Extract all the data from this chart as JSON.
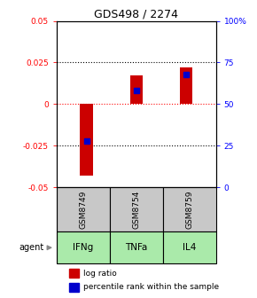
{
  "title": "GDS498 / 2274",
  "samples": [
    "GSM8749",
    "GSM8754",
    "GSM8759"
  ],
  "agents": [
    "IFNg",
    "TNFa",
    "IL4"
  ],
  "log_ratios": [
    -0.043,
    0.017,
    0.022
  ],
  "percentile_ranks": [
    0.28,
    0.58,
    0.68
  ],
  "bar_color": "#cc0000",
  "blue_color": "#0000cc",
  "ylim_left": [
    -0.05,
    0.05
  ],
  "yticks_left": [
    -0.05,
    -0.025,
    0,
    0.025,
    0.05
  ],
  "ytick_labels_left": [
    "-0.05",
    "-0.025",
    "0",
    "0.025",
    "0.05"
  ],
  "yticks_right": [
    0,
    25,
    50,
    75,
    100
  ],
  "ytick_labels_right": [
    "0",
    "25",
    "50",
    "75",
    "100%"
  ],
  "hlines": [
    -0.025,
    0,
    0.025
  ],
  "gray_bg": "#c8c8c8",
  "green_bg": "#aaeaaa",
  "agent_label": "agent",
  "legend_log": "log ratio",
  "legend_pct": "percentile rank within the sample",
  "bar_width": 0.25
}
